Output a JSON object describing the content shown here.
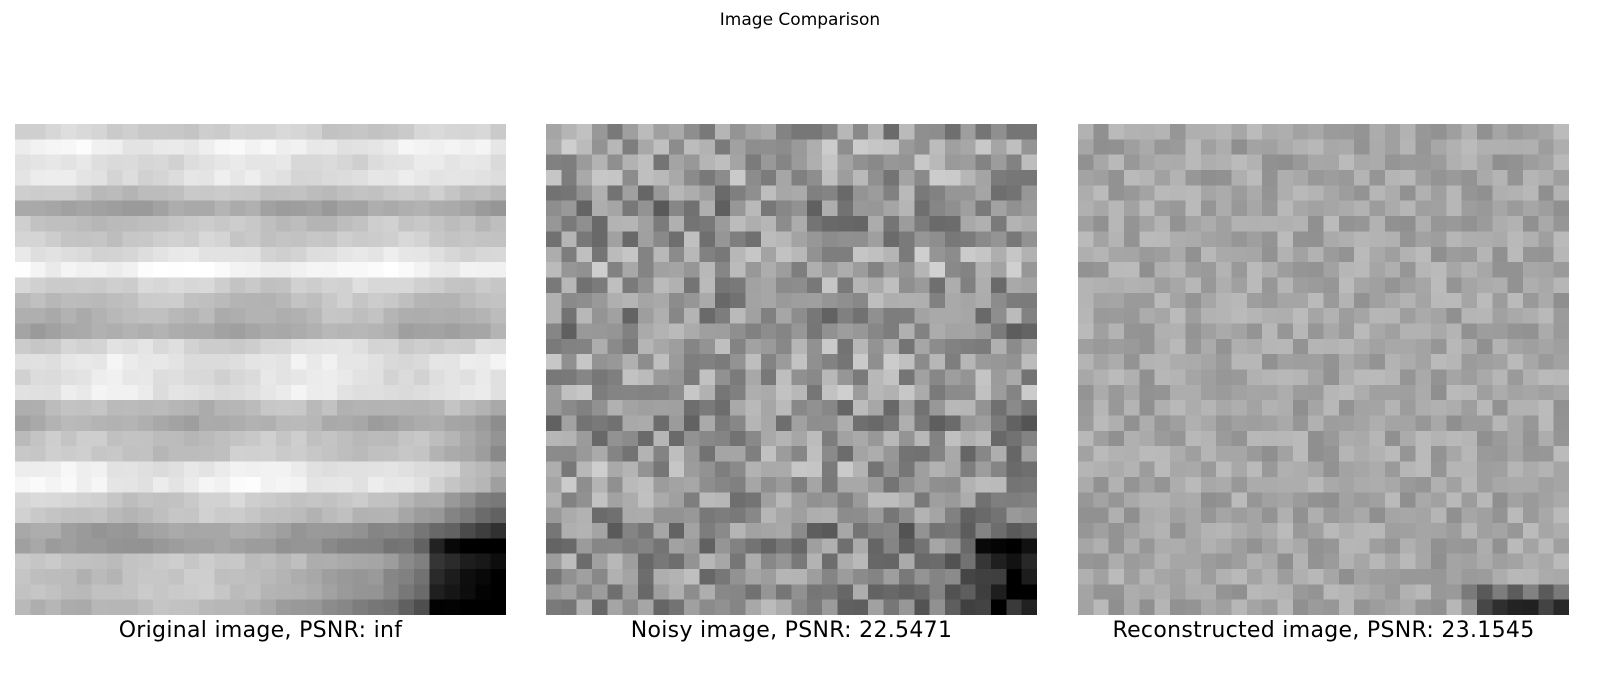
{
  "figure": {
    "title": "Image Comparison"
  },
  "grid_size": 32,
  "panels": [
    {
      "caption": "Original image, PSNR: inf",
      "kind": "original"
    },
    {
      "caption": "Noisy image, PSNR: 22.5471",
      "kind": "noisy"
    },
    {
      "caption": "Reconstructed image, PSNR: 23.1545",
      "kind": "reconstructed"
    }
  ]
}
